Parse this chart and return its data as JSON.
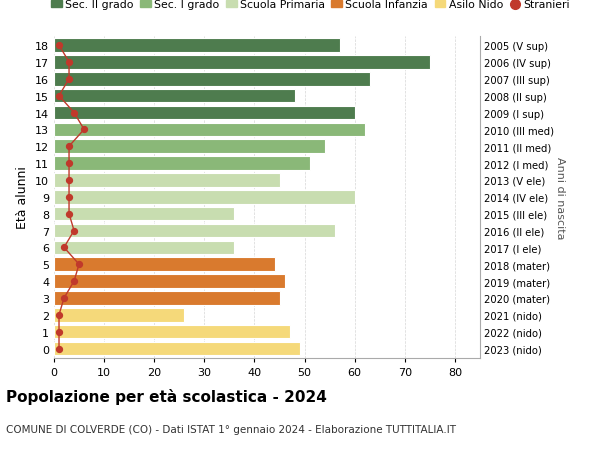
{
  "ages": [
    0,
    1,
    2,
    3,
    4,
    5,
    6,
    7,
    8,
    9,
    10,
    11,
    12,
    13,
    14,
    15,
    16,
    17,
    18
  ],
  "values": [
    49,
    47,
    26,
    45,
    46,
    44,
    36,
    56,
    36,
    60,
    45,
    51,
    54,
    62,
    60,
    48,
    63,
    75,
    57
  ],
  "stranieri": [
    1,
    1,
    1,
    2,
    4,
    5,
    2,
    4,
    3,
    3,
    3,
    3,
    3,
    6,
    4,
    1,
    3,
    3,
    1
  ],
  "bar_colors": [
    "#f5d97a",
    "#f5d97a",
    "#f5d97a",
    "#d97a2e",
    "#d97a2e",
    "#d97a2e",
    "#c8ddb0",
    "#c8ddb0",
    "#c8ddb0",
    "#c8ddb0",
    "#c8ddb0",
    "#8ab878",
    "#8ab878",
    "#8ab878",
    "#4e7c4e",
    "#4e7c4e",
    "#4e7c4e",
    "#4e7c4e",
    "#4e7c4e"
  ],
  "right_labels": [
    "2023 (nido)",
    "2022 (nido)",
    "2021 (nido)",
    "2020 (mater)",
    "2019 (mater)",
    "2018 (mater)",
    "2017 (I ele)",
    "2016 (II ele)",
    "2015 (III ele)",
    "2014 (IV ele)",
    "2013 (V ele)",
    "2012 (I med)",
    "2011 (II med)",
    "2010 (III med)",
    "2009 (I sup)",
    "2008 (II sup)",
    "2007 (III sup)",
    "2006 (IV sup)",
    "2005 (V sup)"
  ],
  "legend_labels": [
    "Sec. II grado",
    "Sec. I grado",
    "Scuola Primaria",
    "Scuola Infanzia",
    "Asilo Nido",
    "Stranieri"
  ],
  "legend_colors": [
    "#4e7c4e",
    "#8ab878",
    "#c8ddb0",
    "#d97a2e",
    "#f5d97a",
    "#c0392b"
  ],
  "stranieri_color": "#c0392b",
  "title": "Popolazione per età scolastica - 2024",
  "subtitle": "COMUNE DI COLVERDE (CO) - Dati ISTAT 1° gennaio 2024 - Elaborazione TUTTITALIA.IT",
  "ylabel": "Età alunni",
  "right_ylabel": "Anni di nascita",
  "xlim": [
    0,
    85
  ],
  "xticks": [
    0,
    10,
    20,
    30,
    40,
    50,
    60,
    70,
    80
  ],
  "figsize": [
    6.0,
    4.6
  ],
  "dpi": 100
}
